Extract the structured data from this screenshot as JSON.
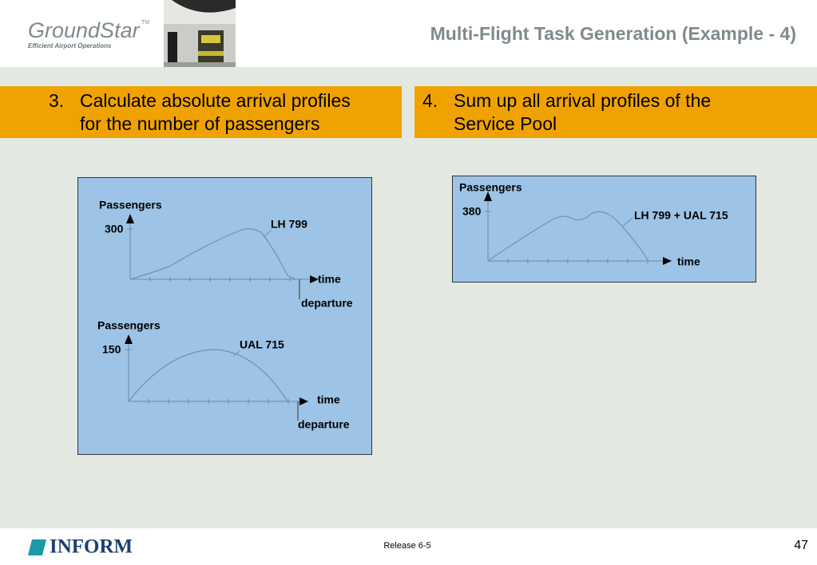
{
  "header": {
    "logo": "GroundStar",
    "logo_tm": "TM",
    "logo_tagline": "Efficient Airport Operations",
    "title": "Multi-Flight Task Generation (Example - 4)"
  },
  "steps": [
    {
      "number": "3.",
      "lines": [
        "Calculate absolute arrival profiles",
        "for the number of passengers"
      ]
    },
    {
      "number": "4.",
      "lines": [
        "Sum up all arrival profiles of the",
        "Service Pool"
      ]
    }
  ],
  "charts": [
    {
      "y_label": "Passengers",
      "y_value": "300",
      "series": "LH 799",
      "x_label": "time",
      "marker": "departure"
    },
    {
      "y_label": "Passengers",
      "y_value": "150",
      "series": "UAL 715",
      "x_label": "time",
      "marker": "departure"
    },
    {
      "y_label": "Passengers",
      "y_value": "380",
      "series": "LH 799 + UAL 715",
      "x_label": "time"
    }
  ],
  "footer": {
    "company": "INFORM",
    "release": "Release 6-5",
    "page": "47"
  }
}
